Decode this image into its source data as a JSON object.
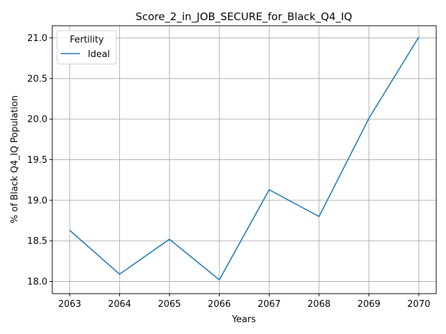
{
  "chart_data": {
    "type": "line",
    "title": "Score_2_in_JOB_SECURE_for_Black_Q4_IQ",
    "xlabel": "Years",
    "ylabel": "% of Black Q4_IQ Population",
    "x": [
      2063,
      2064,
      2065,
      2066,
      2067,
      2068,
      2069,
      2070
    ],
    "xticks": [
      "2063",
      "2064",
      "2065",
      "2066",
      "2067",
      "2068",
      "2069",
      "2070"
    ],
    "yticks": [
      "18.0",
      "18.5",
      "19.0",
      "19.5",
      "20.0",
      "20.5",
      "21.0"
    ],
    "xlim": [
      2062.65,
      2070.35
    ],
    "ylim": [
      17.85,
      21.15
    ],
    "grid": true,
    "legend": {
      "title": "Fertility",
      "placement": "top-left"
    },
    "series": [
      {
        "name": "Ideal",
        "color": "#1f77b4",
        "values": [
          18.63,
          18.09,
          18.52,
          18.02,
          19.13,
          18.8,
          20.01,
          21.01
        ]
      }
    ]
  }
}
